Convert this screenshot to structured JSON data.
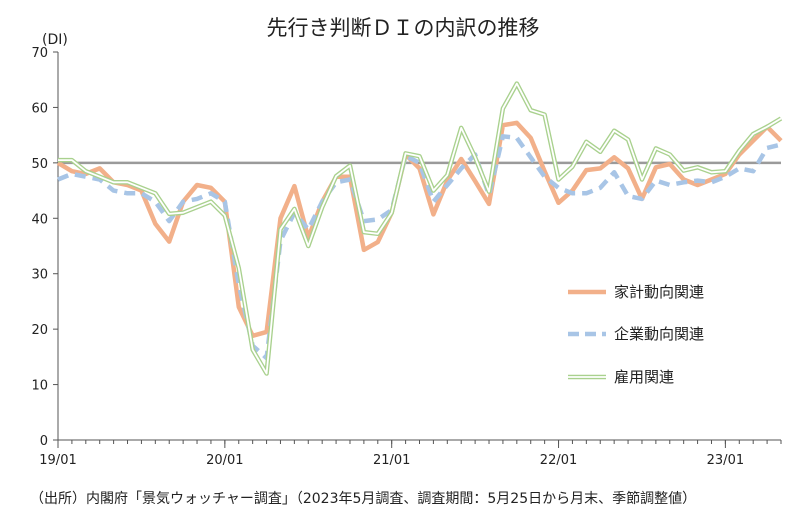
{
  "title": "先行き判断ＤＩの内訳の推移",
  "source": "（出所）内閣府「景気ウォッチャー調査」（2023年5月調査、調査期間：5月25日から月末、季節調整値）",
  "chart_data": {
    "type": "line",
    "title": "先行き判断ＤＩの内訳の推移",
    "ylabel": "(DI)",
    "ylim": [
      0,
      70
    ],
    "yticks": [
      0,
      10,
      20,
      30,
      40,
      50,
      60,
      70
    ],
    "reference_line": 50,
    "x": [
      "19/01",
      "19/02",
      "19/03",
      "19/04",
      "19/05",
      "19/06",
      "19/07",
      "19/08",
      "19/09",
      "19/10",
      "19/11",
      "19/12",
      "20/01",
      "20/02",
      "20/03",
      "20/04",
      "20/05",
      "20/06",
      "20/07",
      "20/08",
      "20/09",
      "20/10",
      "20/11",
      "20/12",
      "21/01",
      "21/02",
      "21/03",
      "21/04",
      "21/05",
      "21/06",
      "21/07",
      "21/08",
      "21/09",
      "21/10",
      "21/11",
      "21/12",
      "22/01",
      "22/02",
      "22/03",
      "22/04",
      "22/05",
      "22/06",
      "22/07",
      "22/08",
      "22/09",
      "22/10",
      "22/11",
      "22/12",
      "23/01",
      "23/02",
      "23/03",
      "23/04",
      "23/05"
    ],
    "xtick_labels": [
      "19/01",
      "20/01",
      "21/01",
      "22/01",
      "23/01"
    ],
    "legend_position": "right-middle",
    "series": [
      {
        "name": "家計動向関連",
        "color": "#f2b08a",
        "style": "solid",
        "values": [
          50,
          48.5,
          48,
          49,
          46.5,
          46,
          45,
          39,
          35.8,
          43,
          46,
          45.5,
          43,
          24,
          18.8,
          19.5,
          40,
          45.8,
          36.5,
          43,
          47.5,
          47.5,
          34.3,
          35.7,
          41,
          51.5,
          49,
          40.7,
          46.8,
          50.7,
          46.7,
          42.6,
          56.8,
          57.2,
          54.5,
          48.5,
          42.8,
          45,
          48.7,
          49,
          51,
          49,
          43.5,
          49.2,
          49.8,
          47,
          46,
          47,
          48,
          51.5,
          54,
          56.5,
          54
        ]
      },
      {
        "name": "企業動向関連",
        "color": "#a8c5e6",
        "style": "dashed",
        "values": [
          47,
          48,
          47.5,
          47,
          45,
          44.5,
          44.5,
          43,
          39.5,
          43,
          43.5,
          44.5,
          43,
          28,
          17,
          14.8,
          36,
          41,
          38,
          43,
          46.5,
          47,
          39.5,
          39.8,
          41.5,
          51.3,
          50,
          43,
          46,
          49,
          51.5,
          44.2,
          54.8,
          54.5,
          51,
          47.5,
          45.5,
          44.5,
          44.5,
          45.5,
          48.3,
          44,
          43.5,
          46.8,
          46,
          46.5,
          46.8,
          46.5,
          47.5,
          49,
          48.5,
          52.7,
          53.3
        ]
      },
      {
        "name": "雇用関連",
        "color": "#a9d18e",
        "style": "double",
        "values": [
          50.5,
          50.5,
          48.5,
          47.5,
          46.5,
          46.5,
          45.5,
          44.5,
          40.8,
          41,
          42,
          43,
          40.5,
          31,
          16.3,
          12,
          38,
          41.7,
          35,
          42,
          47.6,
          49.5,
          37.5,
          37.2,
          41,
          51.7,
          51.2,
          45,
          47.8,
          56.3,
          51,
          44.8,
          59.8,
          64.3,
          59.5,
          58.7,
          47,
          49.3,
          53.8,
          52,
          55.8,
          54.2,
          47,
          52.6,
          51.5,
          48.6,
          49.2,
          48.3,
          48.5,
          52.2,
          55.2,
          56.5,
          58
        ]
      }
    ]
  }
}
